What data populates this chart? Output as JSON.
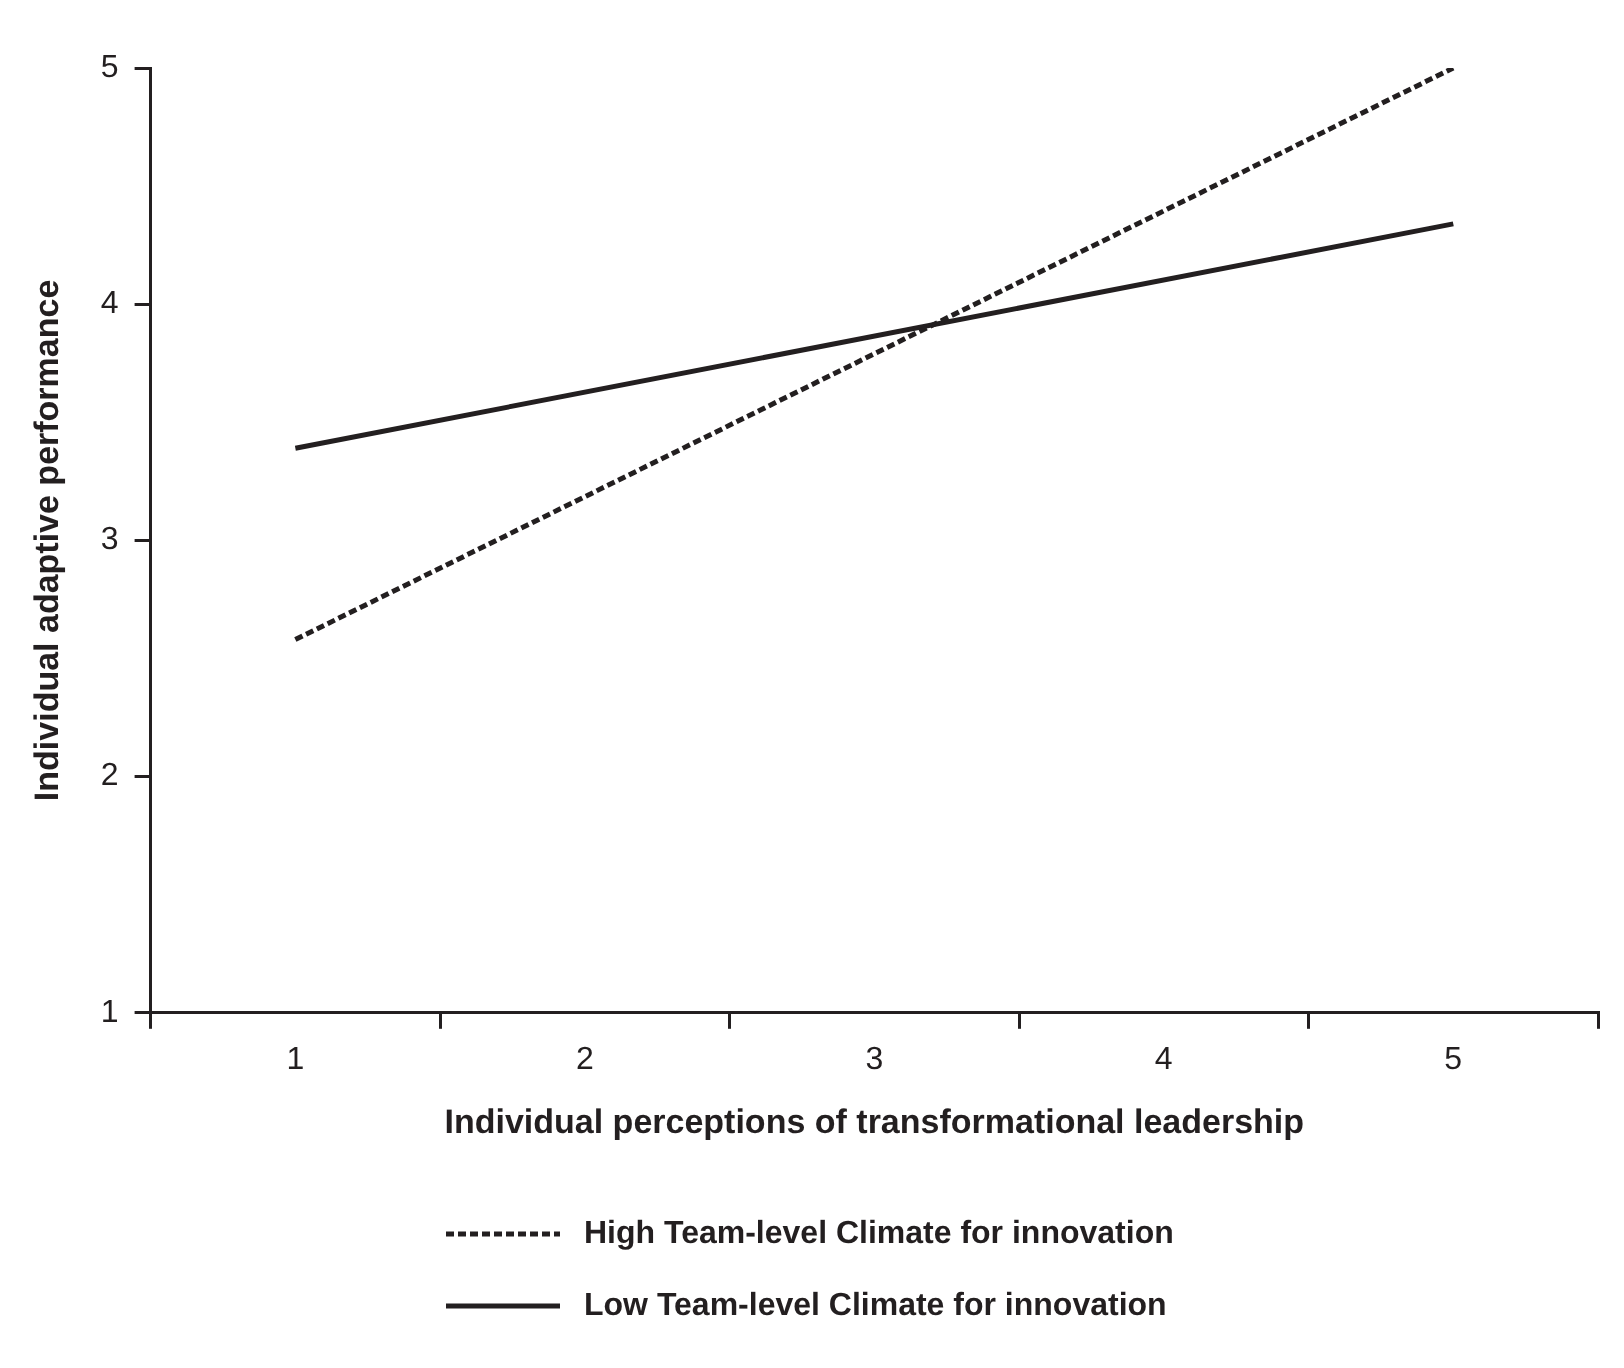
{
  "chart_data": {
    "type": "line",
    "xlabel": "Individual perceptions of transformational leadership",
    "ylabel": "Individual adaptive performance",
    "categories": [
      "1",
      "2",
      "3",
      "4",
      "5"
    ],
    "ylim": [
      1,
      5
    ],
    "yticks": [
      1,
      2,
      3,
      4,
      5
    ],
    "series": [
      {
        "name": "High Team-level Climate for innovation",
        "color": "#231f20",
        "line_style": "dashed",
        "values": [
          2.58,
          null,
          null,
          null,
          5.0
        ]
      },
      {
        "name": "Low Team-level Climate for innovation",
        "color": "#231f20",
        "line_style": "solid",
        "values": [
          3.39,
          null,
          null,
          null,
          4.34
        ]
      }
    ],
    "legend": "bottom",
    "grid": false,
    "marker": "none"
  }
}
